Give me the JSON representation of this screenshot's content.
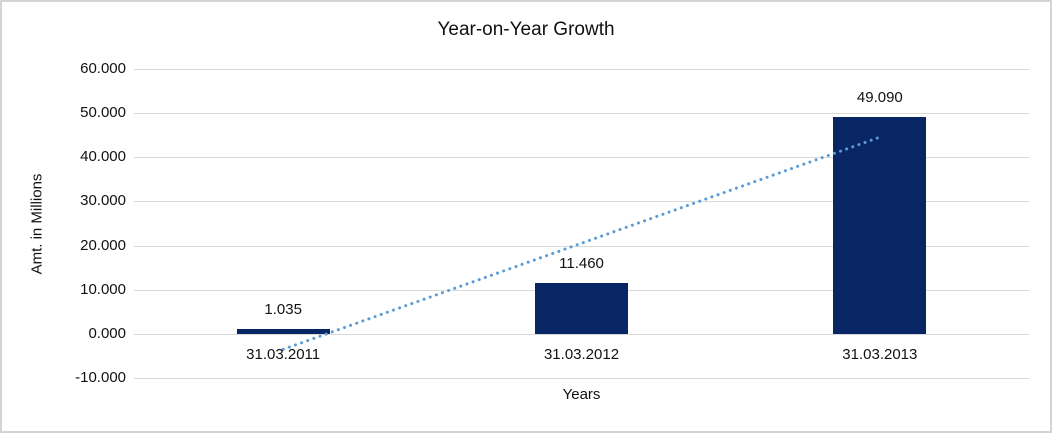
{
  "chart_data": {
    "type": "bar",
    "title": "Year-on-Year Growth",
    "xlabel": "Years",
    "ylabel": "Amt. in Millions",
    "categories": [
      "31.03.2011",
      "31.03.2012",
      "31.03.2013"
    ],
    "values": [
      1.035,
      11.46,
      49.09
    ],
    "value_labels": [
      "1.035",
      "11.460",
      "49.090"
    ],
    "ylim": [
      -10,
      60
    ],
    "yticks": [
      {
        "value": 60,
        "label": "60.000"
      },
      {
        "value": 50,
        "label": "50.000"
      },
      {
        "value": 40,
        "label": "40.000"
      },
      {
        "value": 30,
        "label": "30.000"
      },
      {
        "value": 20,
        "label": "20.000"
      },
      {
        "value": 10,
        "label": "10.000"
      },
      {
        "value": 0,
        "label": "0.000"
      },
      {
        "value": -10,
        "label": "-10.000"
      }
    ],
    "grid": true,
    "legend_position": "none",
    "trendline": {
      "type": "linear",
      "style": "dotted",
      "start_value": -3.5,
      "end_value": 44.56
    },
    "colors": {
      "bar": "#072663",
      "trendline": "#5b9bd5",
      "gridline": "#d9d9d9",
      "text": "#111111",
      "background": "#ffffff",
      "border": "#d4d4d4"
    }
  }
}
